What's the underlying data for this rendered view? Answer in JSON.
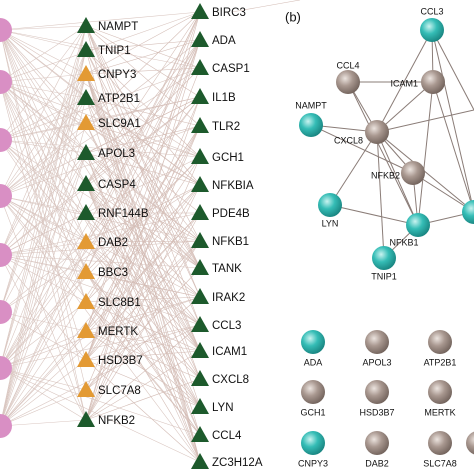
{
  "panel_a": {
    "column_1": [
      {
        "label": "NAMPT",
        "color": "#1d5a2c"
      },
      {
        "label": "TNIP1",
        "color": "#1d5a2c"
      },
      {
        "label": "CNPY3",
        "color": "#e39a34"
      },
      {
        "label": "ATP2B1",
        "color": "#1d5a2c"
      },
      {
        "label": "SLC9A1",
        "color": "#e39a34"
      },
      {
        "label": "APOL3",
        "color": "#1d5a2c"
      },
      {
        "label": "CASP4",
        "color": "#1d5a2c"
      },
      {
        "label": "RNF144B",
        "color": "#1d5a2c"
      },
      {
        "label": "DAB2",
        "color": "#e39a34"
      },
      {
        "label": "BBC3",
        "color": "#e39a34"
      },
      {
        "label": "SLC8B1",
        "color": "#e39a34"
      },
      {
        "label": "MERTK",
        "color": "#e39a34"
      },
      {
        "label": "HSD3B7",
        "color": "#e39a34"
      },
      {
        "label": "SLC7A8",
        "color": "#e39a34"
      },
      {
        "label": "NFKB2",
        "color": "#1d5a2c"
      }
    ],
    "column_2": [
      {
        "label": "BIRC3",
        "color": "#1d5a2c"
      },
      {
        "label": "ADA",
        "color": "#1d5a2c"
      },
      {
        "label": "CASP1",
        "color": "#1d5a2c"
      },
      {
        "label": "IL1B",
        "color": "#1d5a2c"
      },
      {
        "label": "TLR2",
        "color": "#1d5a2c"
      },
      {
        "label": "GCH1",
        "color": "#1d5a2c"
      },
      {
        "label": "NFKBIA",
        "color": "#1d5a2c"
      },
      {
        "label": "PDE4B",
        "color": "#1d5a2c"
      },
      {
        "label": "NFKB1",
        "color": "#1d5a2c"
      },
      {
        "label": "TANK",
        "color": "#1d5a2c"
      },
      {
        "label": "IRAK2",
        "color": "#1d5a2c"
      },
      {
        "label": "CCL3",
        "color": "#1d5a2c"
      },
      {
        "label": "ICAM1",
        "color": "#1d5a2c"
      },
      {
        "label": "CXCL8",
        "color": "#1d5a2c"
      },
      {
        "label": "LYN",
        "color": "#1d5a2c"
      },
      {
        "label": "CCL4",
        "color": "#1d5a2c"
      },
      {
        "label": "ZC3H12A",
        "color": "#1d5a2c"
      }
    ]
  },
  "panel_b": {
    "label": "(b)",
    "network_nodes": [
      {
        "label": "CCL3",
        "color": "teal"
      },
      {
        "label": "CCL4",
        "color": "gray"
      },
      {
        "label": "ICAM1",
        "color": "gray"
      },
      {
        "label": "NAMPT",
        "color": "teal"
      },
      {
        "label": "CXCL8",
        "color": "gray"
      },
      {
        "label": "NFKB2",
        "color": "gray"
      },
      {
        "label": "LYN",
        "color": "teal"
      },
      {
        "label": "NFKB1",
        "color": "teal"
      },
      {
        "label": "TNIP1",
        "color": "teal"
      }
    ],
    "isolated_nodes": [
      {
        "label": "ADA",
        "color": "teal"
      },
      {
        "label": "APOL3",
        "color": "gray"
      },
      {
        "label": "ATP2B1",
        "color": "gray"
      },
      {
        "label": "GCH1",
        "color": "gray"
      },
      {
        "label": "HSD3B7",
        "color": "gray"
      },
      {
        "label": "MERTK",
        "color": "gray"
      },
      {
        "label": "CNPY3",
        "color": "teal"
      },
      {
        "label": "DAB2",
        "color": "gray"
      },
      {
        "label": "SLC7A8",
        "color": "gray"
      }
    ]
  }
}
